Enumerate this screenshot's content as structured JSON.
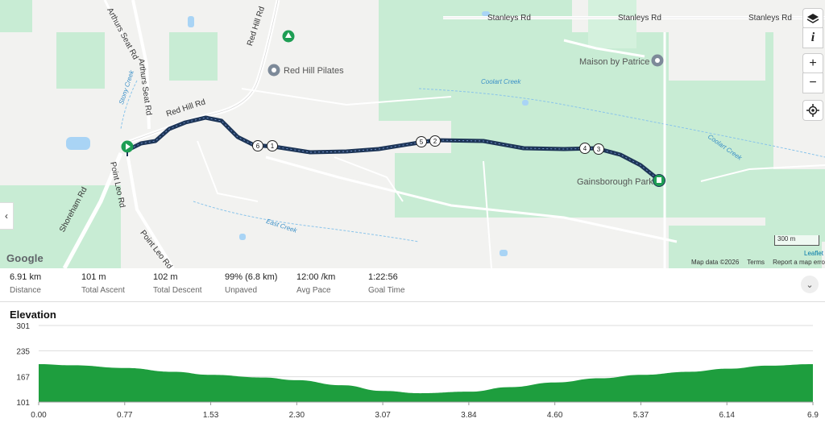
{
  "map": {
    "roads": {
      "stanleys_rd_1": "Stanleys Rd",
      "stanleys_rd_2": "Stanleys Rd",
      "stanleys_rd_3": "Stanleys Rd",
      "red_hill_rd": "Red Hill Rd",
      "red_hill_rd_top": "Red Hill Rd",
      "arthurs_seat_rd_1": "Arthurs Seat Rd",
      "arthurs_seat_rd_2": "Arthurs Seat Rd",
      "shoreham_rd": "Shoreham Rd",
      "point_leo_rd_1": "Point Leo Rd",
      "point_leo_rd_2": "Point Leo Rd"
    },
    "creeks": {
      "coolart_creek_1": "Coolart Creek",
      "coolart_creek_2": "Coolart Creek",
      "east_creek": "East Creek",
      "stony_creek": "Stony Creek"
    },
    "pois": {
      "red_hill_pilates": "Red Hill Pilates",
      "maison_by_patrice": "Maison by Patrice",
      "gainsborough_park": "Gainsborough Park"
    },
    "markers": [
      "6",
      "1",
      "5",
      "2",
      "4",
      "3"
    ],
    "controls": {
      "info": "i",
      "zoom_in": "+",
      "zoom_out": "−",
      "collapse": "‹"
    },
    "google_logo": "Google",
    "attribution": {
      "map_data": "Map data ©2026",
      "terms": "Terms",
      "report": "Report a map error"
    },
    "scale_label": "300 m",
    "leaflet": "Leaflet",
    "route_color": "#1d3557",
    "park_color": "#c8ecd4"
  },
  "stats": [
    {
      "value": "6.91 km",
      "label": "Distance"
    },
    {
      "value": "101 m",
      "label": "Total Ascent"
    },
    {
      "value": "102 m",
      "label": "Total Descent"
    },
    {
      "value": "99% (6.8 km)",
      "label": "Unpaved"
    },
    {
      "value": "12:00 /km",
      "label": "Avg Pace"
    },
    {
      "value": "1:22:56",
      "label": "Goal Time"
    }
  ],
  "expand_icon": "⌄",
  "elevation": {
    "title": "Elevation",
    "y_ticks": [
      "301",
      "235",
      "167",
      "101"
    ],
    "x_ticks": [
      "0.00",
      "0.77",
      "1.53",
      "2.30",
      "3.07",
      "3.84",
      "4.60",
      "5.37",
      "6.14",
      "6.9"
    ],
    "fill_color": "#1e9e3e"
  },
  "chart_data": {
    "type": "area",
    "title": "Elevation",
    "xlabel": "",
    "ylabel": "",
    "ylim": [
      101,
      301
    ],
    "xlim": [
      0,
      6.9
    ],
    "x": [
      0,
      0.3,
      0.77,
      1.2,
      1.53,
      2.0,
      2.3,
      2.7,
      3.07,
      3.4,
      3.84,
      4.2,
      4.6,
      5.0,
      5.37,
      5.8,
      6.14,
      6.5,
      6.9
    ],
    "y": [
      200,
      197,
      190,
      180,
      172,
      165,
      158,
      145,
      130,
      124,
      128,
      140,
      152,
      163,
      172,
      180,
      188,
      196,
      200
    ]
  }
}
